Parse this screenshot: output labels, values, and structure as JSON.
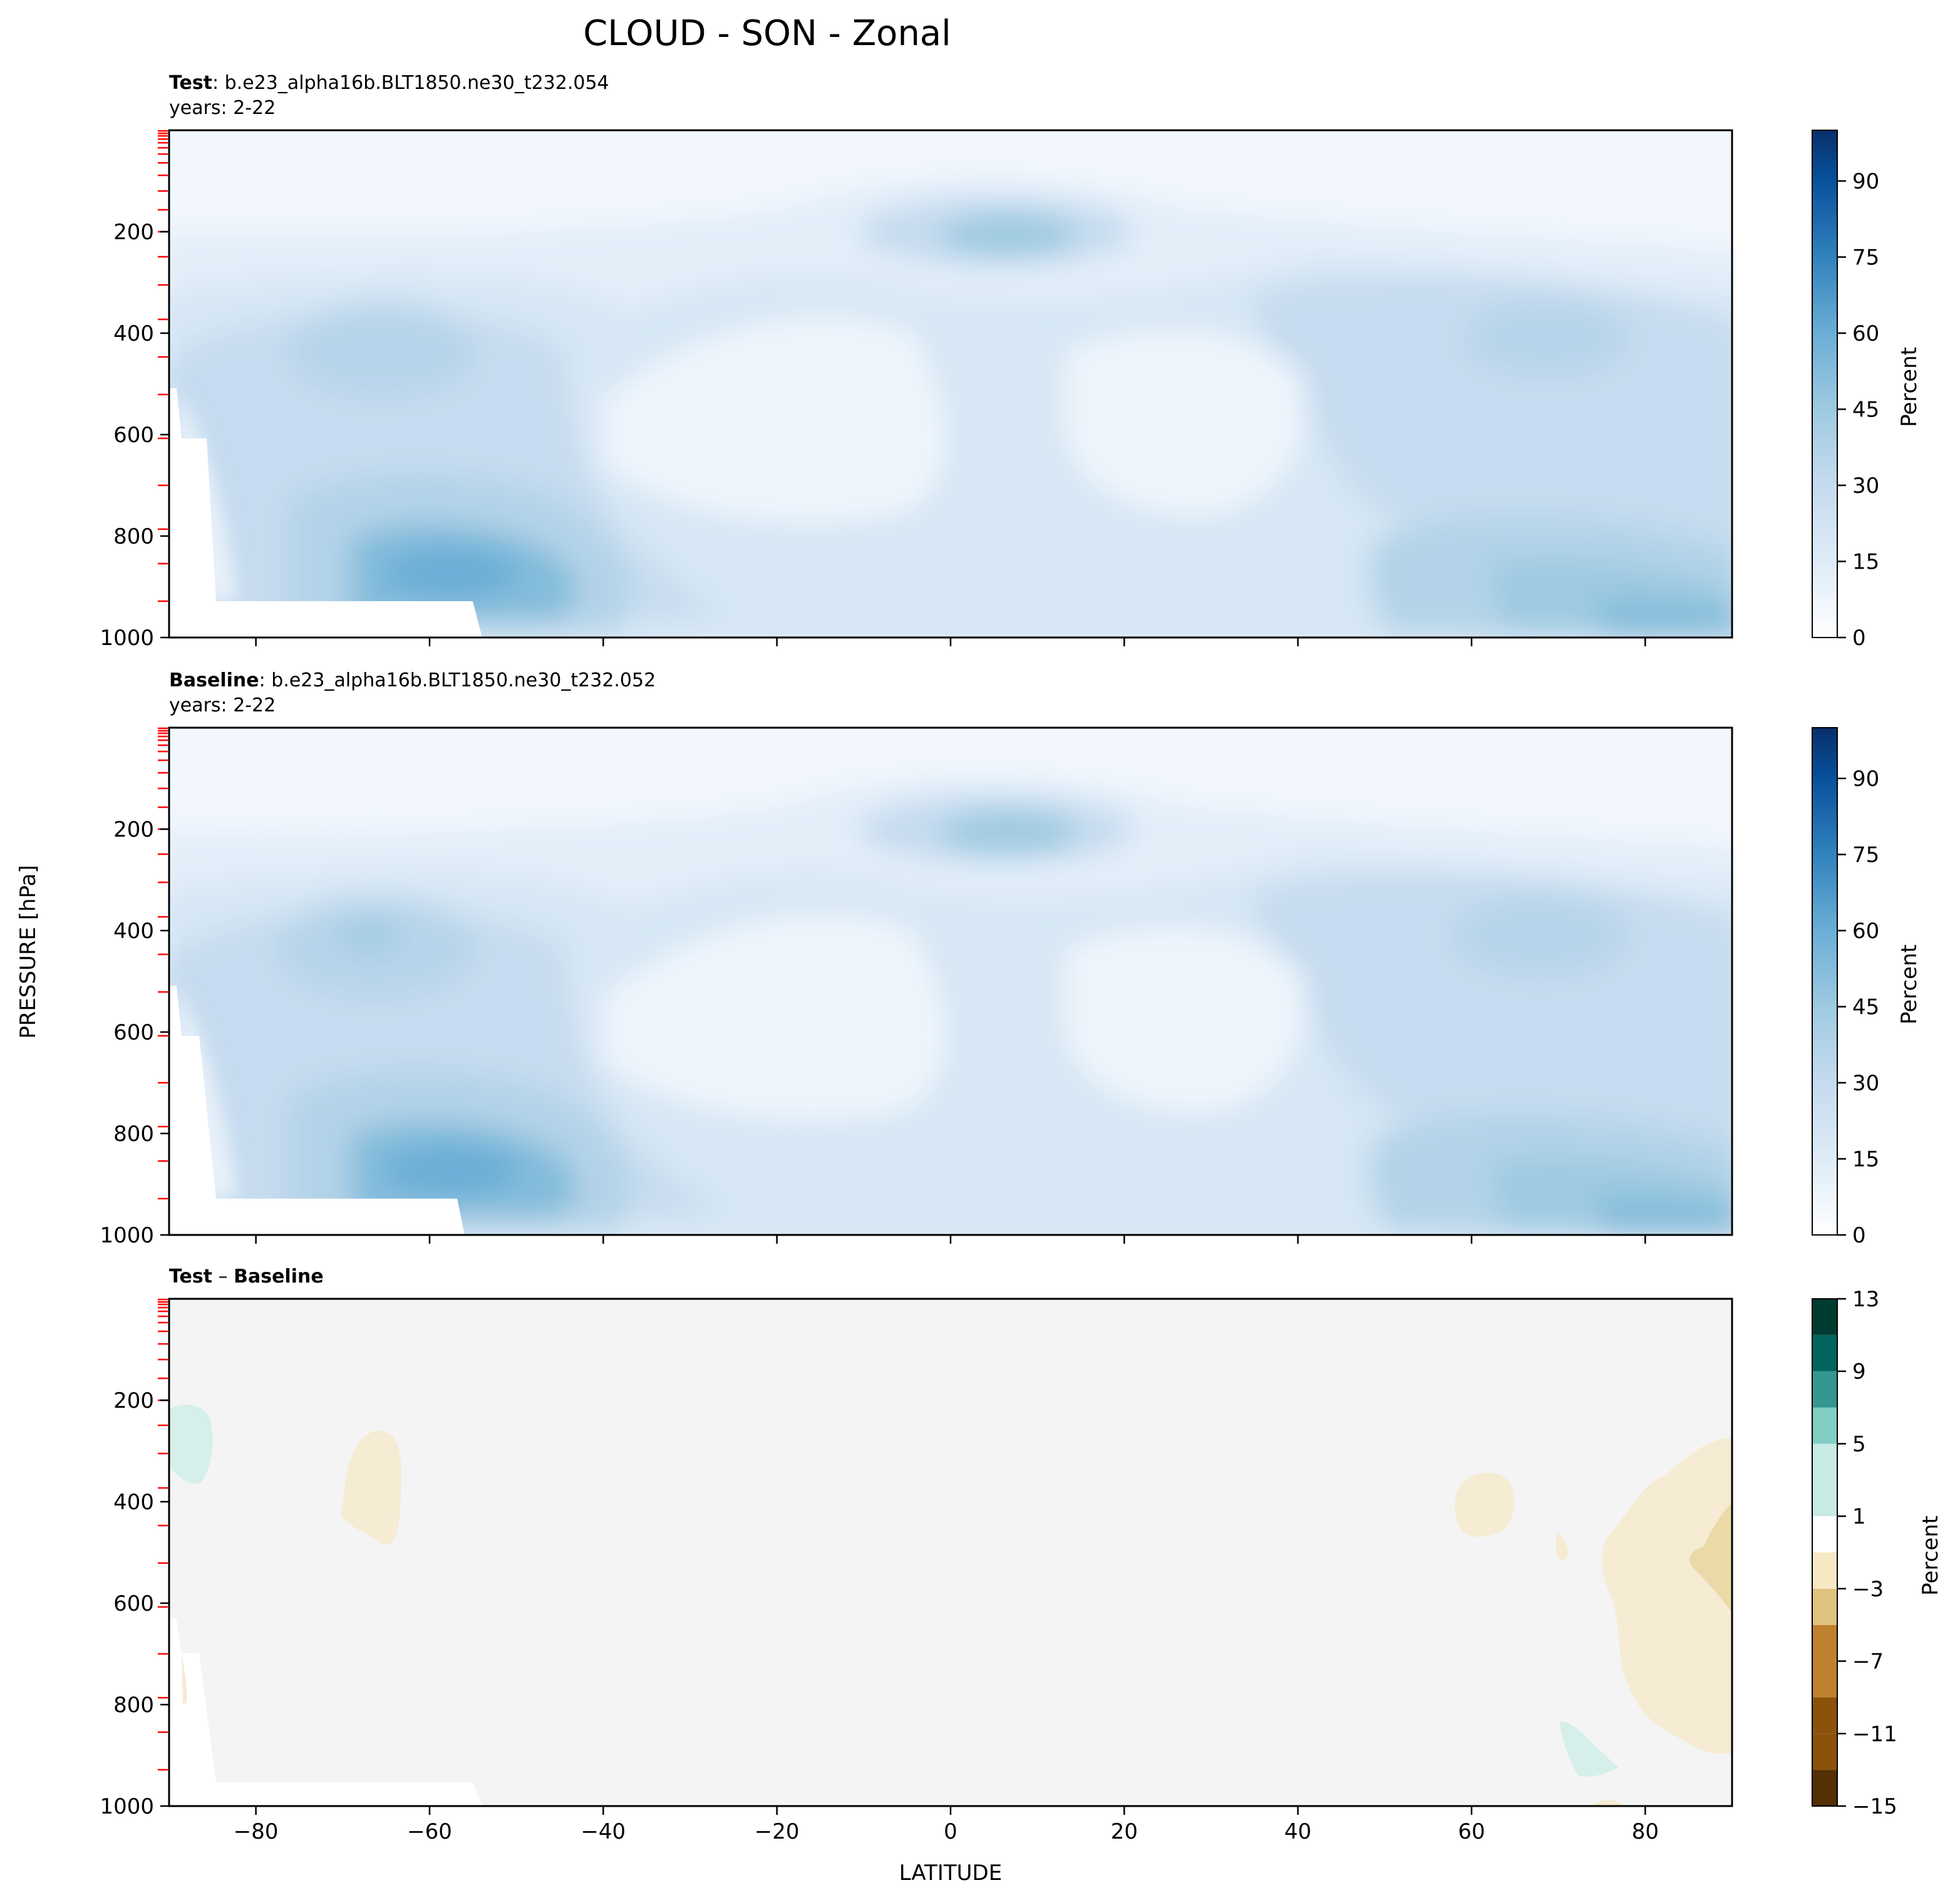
{
  "figure": {
    "title": "CLOUD - SON - Zonal",
    "ylabel": "PRESSURE [hPa]",
    "xlabel": "LATITUDE"
  },
  "chart_data": [
    {
      "type": "heatmap",
      "panel": "test",
      "label_bold": "Test",
      "label_rest": ": b.e23_alpha16b.BLT1850.ne30_t232.054",
      "years": "years: 2-22",
      "x_ticks": [
        -80,
        -60,
        -40,
        -20,
        0,
        20,
        40,
        60,
        80
      ],
      "xlim": [
        -90,
        90
      ],
      "y_ticks": [
        200,
        400,
        600,
        800,
        1000
      ],
      "ylim": [
        1000,
        0
      ],
      "y_inverted": true,
      "colormap": "Blues",
      "colorbar": {
        "label": "Percent",
        "ticks": [
          0,
          15,
          30,
          45,
          60,
          75,
          90
        ],
        "range": [
          0,
          100
        ]
      },
      "features": [
        {
          "name": "tropical upper-level cloud maximum",
          "lat": 10,
          "pressure": 210,
          "value": 30
        },
        {
          "name": "southern midlatitude low cloud maximum",
          "lat": -60,
          "pressure": 860,
          "value": 50
        },
        {
          "name": "arctic low cloud",
          "lat": 80,
          "pressure": 980,
          "value": 45
        },
        {
          "name": "subtropical mid-level minimum (south)",
          "lat": -20,
          "pressure": 550,
          "value": 5
        },
        {
          "name": "subtropical mid-level minimum (north)",
          "lat": 25,
          "pressure": 600,
          "value": 5
        }
      ]
    },
    {
      "type": "heatmap",
      "panel": "baseline",
      "label_bold": "Baseline",
      "label_rest": ": b.e23_alpha16b.BLT1850.ne30_t232.052",
      "years": "years: 2-22",
      "x_ticks": [
        -80,
        -60,
        -40,
        -20,
        0,
        20,
        40,
        60,
        80
      ],
      "xlim": [
        -90,
        90
      ],
      "y_ticks": [
        200,
        400,
        600,
        800,
        1000
      ],
      "ylim": [
        1000,
        0
      ],
      "y_inverted": true,
      "colormap": "Blues",
      "colorbar": {
        "label": "Percent",
        "ticks": [
          0,
          15,
          30,
          45,
          60,
          75,
          90
        ],
        "range": [
          0,
          100
        ]
      }
    },
    {
      "type": "heatmap",
      "panel": "difference",
      "label_bold_a": "Test",
      "label_sep": " – ",
      "label_bold_b": "Baseline",
      "x_ticks": [
        -80,
        -60,
        -40,
        -20,
        0,
        20,
        40,
        60,
        80
      ],
      "x_tick_labels": [
        "−80",
        "−60",
        "−40",
        "−20",
        "0",
        "20",
        "40",
        "60",
        "80"
      ],
      "xlim": [
        -90,
        90
      ],
      "y_ticks": [
        200,
        400,
        600,
        800,
        1000
      ],
      "ylim": [
        1000,
        0
      ],
      "y_inverted": true,
      "colormap": "BrBG",
      "colorbar": {
        "label": "Percent",
        "ticks": [
          13,
          9,
          5,
          1,
          -3,
          -7,
          -11,
          -15
        ],
        "tick_labels": [
          "13",
          "9",
          "5",
          "1",
          "−3",
          "−7",
          "−11",
          "−15"
        ],
        "range": [
          -15,
          13
        ]
      }
    }
  ],
  "colors": {
    "blues_scale": [
      "#ffffff",
      "#f2f7fd",
      "#e8f1fa",
      "#deebf7",
      "#d2e3f3",
      "#c6dbef",
      "#b3d3e8",
      "#9ecae1",
      "#84bcdb",
      "#6baed6",
      "#539ecd",
      "#4292c6",
      "#2f7ebc",
      "#2171b5",
      "#1361a9",
      "#08519c",
      "#083d7f",
      "#08306b"
    ],
    "brbg_scale": [
      "#543005",
      "#8c510a",
      "#bf812d",
      "#dfc27d",
      "#f6e8c3",
      "#f5f5f5",
      "#c7eae5",
      "#80cdc1",
      "#35978f",
      "#01665e",
      "#003c30"
    ],
    "diff_background": "#f3f4f3",
    "level_marker": "#ff0000"
  }
}
